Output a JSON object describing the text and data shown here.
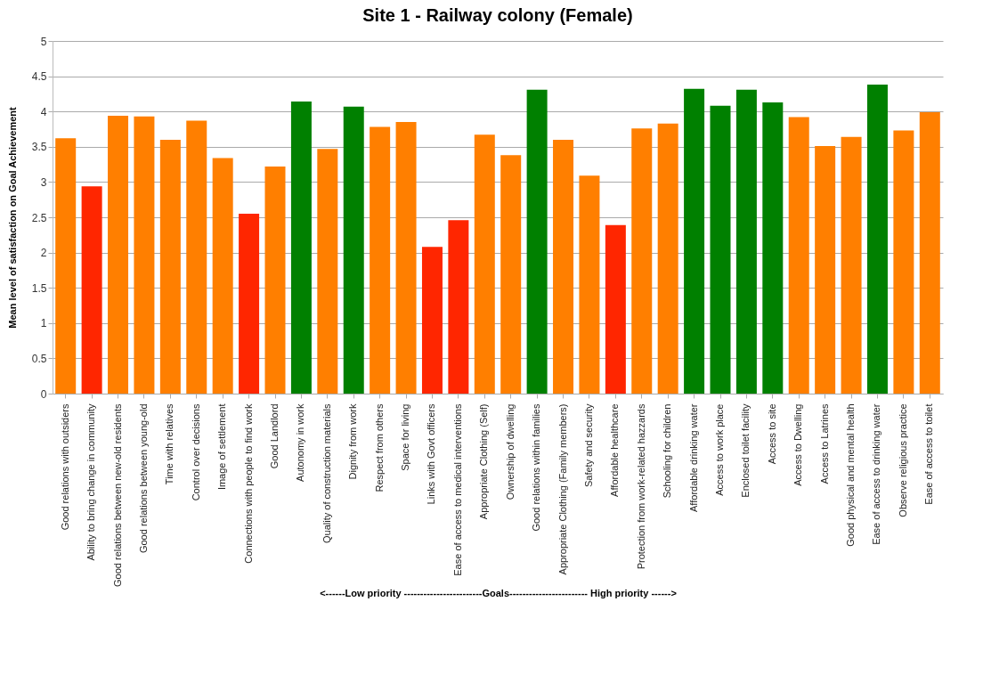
{
  "chart_data": {
    "type": "bar",
    "title": "Site 1 - Railway colony (Female)",
    "xlabel": "<------Low priority ------------------------Goals------------------------ High priority ------>",
    "ylabel": "Mean level of satisfaction on Goal Achievement",
    "categories": [
      "Good relations with outsiders",
      "Ability to bring change in community",
      "Good relations between new-old residents",
      "Good relations between young-old",
      "Time with relatives",
      "Control over decisions",
      "Image of settlement",
      "Connections with people to find work",
      "Good Landlord",
      "Autonomy in work",
      "Quality of construction materials",
      "Dignity from work",
      "Respect from others",
      "Space for living",
      "Links with Govt officers",
      "Ease of access to medical interventions",
      "Appropriate Clothing (Self)",
      "Ownership of dwelling",
      "Good relations within families",
      "Appropriate Clothing (Family members)",
      "Safety and security",
      "Affordable healthcare",
      "Protection from work-related hazzards",
      "Schooling for children",
      "Affordable drinking water",
      "Access to work place",
      "Enclosed toilet facility",
      "Access to site",
      "Access to Dwelling",
      "Access to Latrines",
      "Good physical and mental health",
      "Ease of access to drinking water",
      "Observe religious practice",
      "Ease of access to toilet"
    ],
    "values": [
      3.62,
      2.94,
      3.94,
      3.93,
      3.6,
      3.87,
      3.34,
      2.55,
      3.22,
      4.14,
      3.47,
      4.07,
      3.78,
      3.85,
      2.08,
      2.46,
      3.67,
      3.38,
      4.31,
      3.6,
      3.09,
      2.39,
      3.76,
      3.83,
      4.32,
      4.08,
      4.31,
      4.13,
      3.92,
      3.51,
      3.64,
      4.38,
      3.73,
      3.99
    ],
    "colors": [
      "#ff7f00",
      "#ff2600",
      "#ff7f00",
      "#ff7f00",
      "#ff7f00",
      "#ff7f00",
      "#ff7f00",
      "#ff2600",
      "#ff7f00",
      "#008000",
      "#ff7f00",
      "#008000",
      "#ff7f00",
      "#ff7f00",
      "#ff2600",
      "#ff2600",
      "#ff7f00",
      "#ff7f00",
      "#008000",
      "#ff7f00",
      "#ff7f00",
      "#ff2600",
      "#ff7f00",
      "#ff7f00",
      "#008000",
      "#008000",
      "#008000",
      "#008000",
      "#ff7f00",
      "#ff7f00",
      "#ff7f00",
      "#008000",
      "#ff7f00",
      "#ff7f00"
    ],
    "ylim": [
      0,
      5
    ],
    "yticks": [
      0,
      0.5,
      1,
      1.5,
      2,
      2.5,
      3,
      3.5,
      4,
      4.5,
      5
    ],
    "grid": "y"
  }
}
